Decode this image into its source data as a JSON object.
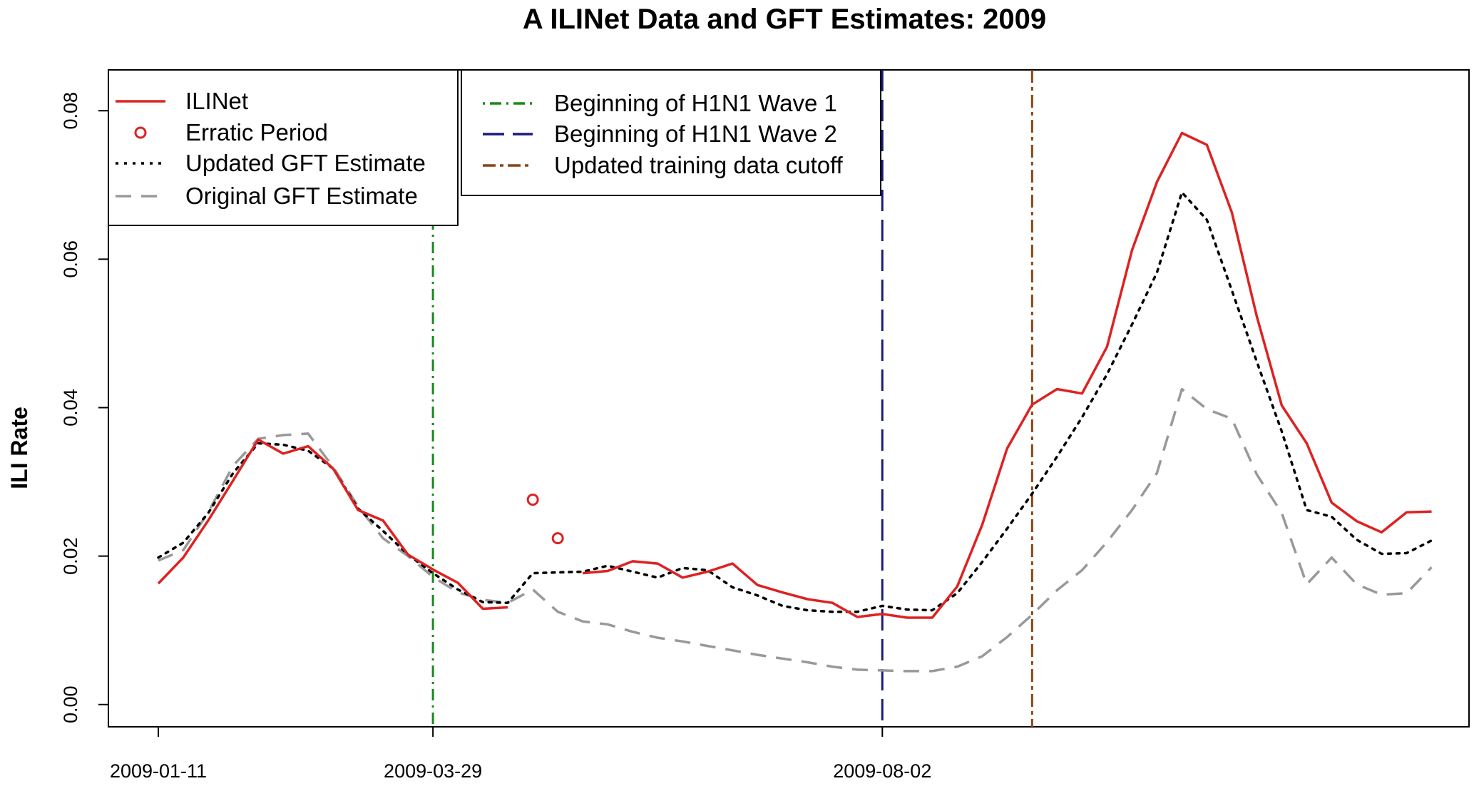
{
  "chart_data": {
    "type": "line",
    "title": "A  ILINet Data and GFT Estimates: 2009",
    "xlabel": "",
    "ylabel": "ILI Rate",
    "x_start_date": "2009-01-11",
    "x_step_days": 7,
    "x_tick_labels": [
      {
        "label": "2009-01-11",
        "week": 0
      },
      {
        "label": "2009-03-29",
        "week": 11
      },
      {
        "label": "2009-08-02",
        "week": 29
      }
    ],
    "y_ticks": [
      "0.00",
      "0.02",
      "0.04",
      "0.06",
      "0.08"
    ],
    "ylim": [
      -0.003,
      0.0855
    ],
    "xlim": [
      -2,
      52.5
    ],
    "grid": false,
    "series": [
      {
        "name": "ILINet",
        "color": "#dd2222",
        "style": "solid",
        "values": [
          0.0163,
          0.0198,
          0.0248,
          0.0302,
          0.0357,
          0.0338,
          0.0348,
          0.0318,
          0.0262,
          0.0248,
          0.0202,
          0.0182,
          0.0164,
          0.0129,
          0.0131,
          null,
          null,
          0.0177,
          0.018,
          0.0193,
          0.019,
          0.0171,
          0.0179,
          0.019,
          0.0161,
          0.0151,
          0.0142,
          0.0137,
          0.0118,
          0.0122,
          0.0117,
          0.0117,
          0.0159,
          0.0242,
          0.0345,
          0.0404,
          0.0425,
          0.0419,
          0.0482,
          0.0612,
          0.0704,
          0.077,
          0.0754,
          0.0663,
          0.0523,
          0.0403,
          0.0352,
          0.0272,
          0.0247,
          0.0232,
          0.0259,
          0.026
        ]
      },
      {
        "name": "Updated GFT Estimate",
        "color": "#000000",
        "style": "dotted",
        "values": [
          0.0198,
          0.0218,
          0.0258,
          0.0312,
          0.0352,
          0.035,
          0.0342,
          0.0318,
          0.0264,
          0.0234,
          0.0202,
          0.0177,
          0.0155,
          0.0138,
          0.0137,
          0.0177,
          0.0178,
          0.0179,
          0.0187,
          0.0179,
          0.0171,
          0.0184,
          0.0181,
          0.0158,
          0.0147,
          0.0133,
          0.0127,
          0.0125,
          0.0125,
          0.0133,
          0.0128,
          0.0127,
          0.015,
          0.0192,
          0.0237,
          0.0284,
          0.0334,
          0.0387,
          0.0445,
          0.0512,
          0.0582,
          0.069,
          0.0653,
          0.0558,
          0.0462,
          0.0368,
          0.0262,
          0.0253,
          0.0222,
          0.0203,
          0.0204,
          0.0221
        ]
      },
      {
        "name": "Original GFT Estimate",
        "color": "#999999",
        "style": "dashed",
        "values": [
          0.0194,
          0.0208,
          0.0259,
          0.0322,
          0.0358,
          0.0363,
          0.0365,
          0.032,
          0.0267,
          0.0224,
          0.02,
          0.0172,
          0.0151,
          0.0141,
          0.0137,
          0.0155,
          0.0125,
          0.0112,
          0.0108,
          0.0098,
          0.009,
          0.0085,
          0.0079,
          0.0073,
          0.0067,
          0.0062,
          0.0057,
          0.0051,
          0.0047,
          0.0046,
          0.0045,
          0.0045,
          0.0051,
          0.0065,
          0.0091,
          0.0121,
          0.0154,
          0.0181,
          0.0219,
          0.0262,
          0.0312,
          0.0425,
          0.0398,
          0.0385,
          0.031,
          0.0258,
          0.0162,
          0.0198,
          0.0162,
          0.0148,
          0.015,
          0.0185
        ]
      }
    ],
    "erratic_period": {
      "name": "Erratic Period",
      "color": "#dd2222",
      "points": [
        {
          "week": 15,
          "value": 0.0276
        },
        {
          "week": 16,
          "value": 0.0224
        }
      ]
    },
    "vertical_lines": [
      {
        "name": "Beginning of H1N1 Wave 1",
        "week": 11,
        "color": "#1a8a1a",
        "style": "dotdash"
      },
      {
        "name": "Beginning of H1N1 Wave 2",
        "week": 29,
        "color": "#1a1a80",
        "style": "longdash"
      },
      {
        "name": "Updated training data cutoff",
        "week": 35,
        "color": "#8b4513",
        "style": "twodash"
      }
    ],
    "legends": [
      {
        "placement": "top-left",
        "entries": [
          "ILINet",
          "Erratic Period",
          "Updated GFT Estimate",
          "Original GFT Estimate"
        ]
      },
      {
        "placement": "top-center",
        "entries": [
          "Beginning of H1N1 Wave 1",
          "Beginning of H1N1 Wave 2",
          "Updated training data cutoff"
        ]
      }
    ]
  }
}
